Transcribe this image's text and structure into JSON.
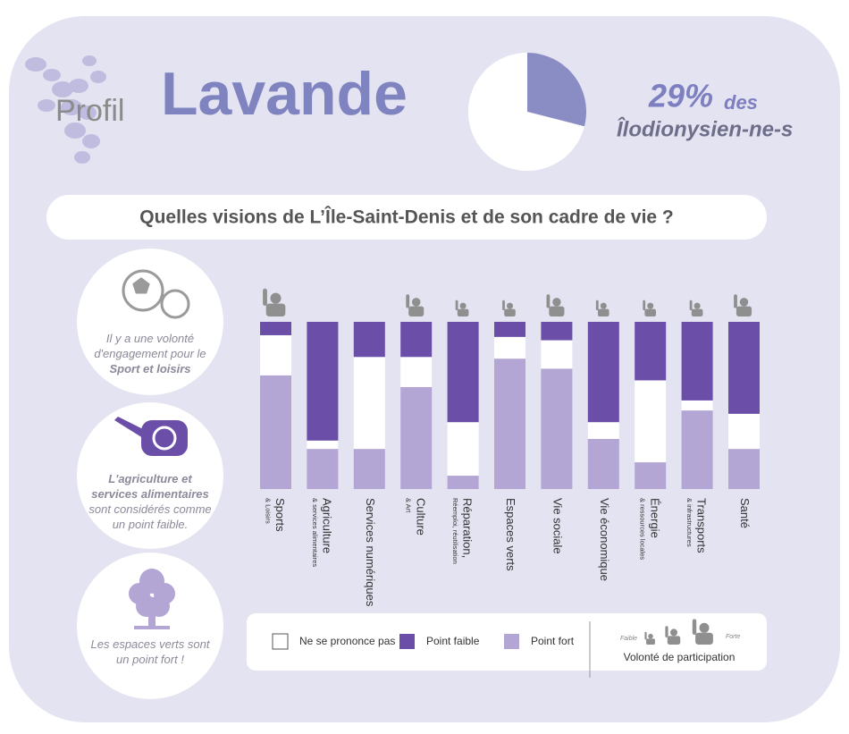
{
  "header": {
    "prefix": "Profil",
    "title": "Lavande",
    "share_label": "29%",
    "share_suffix": "des",
    "population": "Îlodionysien-ne-s"
  },
  "question": "Quelles visions de L’Île-Saint-Denis et de son cadre de vie ?",
  "side_notes": [
    {
      "segments": [
        {
          "text": "Il y a une volonté d'engagement pour le",
          "bold": false
        },
        {
          "text": "Sport et loisirs",
          "bold": true
        }
      ]
    },
    {
      "segments": [
        {
          "text": "L'agriculture et services alimentaires",
          "bold": true
        },
        {
          "text": "sont considérés comme un point faible.",
          "bold": false
        }
      ]
    },
    {
      "segments": [
        {
          "text": "Les espaces verts sont un point fort !",
          "bold": false
        }
      ]
    }
  ],
  "chart_data": [
    {
      "type": "pie",
      "values": [
        29,
        71
      ],
      "colors": [
        "#8a8cc4",
        "#ffffff"
      ]
    },
    {
      "type": "stacked-bar",
      "categories": [
        "Sports",
        "Agriculture",
        "Services numériques",
        "Culture",
        "Réparation,",
        "Espaces verts",
        "Vie sociale",
        "Vie économique",
        "Énergie",
        "Transports",
        "Santé"
      ],
      "category_notes": [
        "& Loisirs",
        "& services alimentaires",
        null,
        "& Art",
        "Réemploi, réutilisation",
        null,
        null,
        null,
        "& ressources locales",
        "& infrastructures",
        null
      ],
      "ylim": [
        0,
        100
      ],
      "series": [
        {
          "name": "Point fort",
          "color": "#b3a6d5",
          "values": [
            68,
            24,
            24,
            61,
            8,
            78,
            72,
            30,
            16,
            47,
            24
          ]
        },
        {
          "name": "Ne se prononce pas",
          "color": "#ffffff",
          "values": [
            24,
            5,
            55,
            18,
            32,
            13,
            17,
            10,
            49,
            6,
            21
          ]
        },
        {
          "name": "Point faible",
          "color": "#6a4ea8",
          "values": [
            8,
            71,
            21,
            21,
            60,
            9,
            11,
            60,
            35,
            47,
            55
          ]
        }
      ],
      "legend_order": [
        1,
        2,
        0
      ],
      "participation": [
        3,
        null,
        null,
        2,
        1,
        1,
        2,
        1,
        1,
        1,
        2
      ],
      "participation_legend": {
        "low": "Faible",
        "high": "Forte",
        "title": "Volonté de participation"
      }
    }
  ]
}
